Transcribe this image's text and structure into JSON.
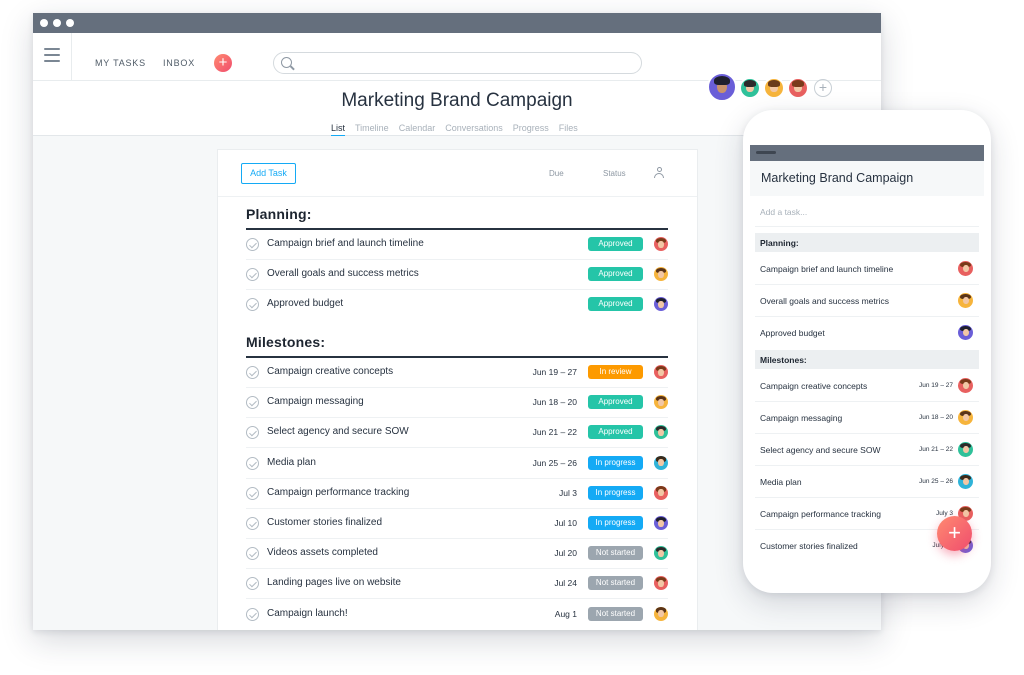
{
  "nav": {
    "my_tasks": "MY TASKS",
    "inbox": "INBOX",
    "plus_symbol": "+",
    "search_placeholder": ""
  },
  "project": {
    "title": "Marketing Brand Campaign",
    "tabs": [
      "List",
      "Timeline",
      "Calendar",
      "Conversations",
      "Progress",
      "Files"
    ],
    "active_tab": "List",
    "add_member_symbol": "+"
  },
  "list": {
    "add_task_label": "Add Task",
    "col_due": "Due",
    "col_status": "Status",
    "sections": [
      {
        "name": "Planning:",
        "tasks": [
          {
            "name": "Campaign brief and launch timeline",
            "due": "",
            "status": "Approved",
            "avatar": "red"
          },
          {
            "name": "Overall goals and success metrics",
            "due": "",
            "status": "Approved",
            "avatar": "yellow"
          },
          {
            "name": "Approved budget",
            "due": "",
            "status": "Approved",
            "avatar": "purple"
          }
        ]
      },
      {
        "name": "Milestones:",
        "tasks": [
          {
            "name": "Campaign creative concepts",
            "due": "Jun 19 – 27",
            "status": "In review",
            "avatar": "red"
          },
          {
            "name": "Campaign messaging",
            "due": "Jun 18 – 20",
            "status": "Approved",
            "avatar": "yellow"
          },
          {
            "name": "Select agency and secure SOW",
            "due": "Jun 21 – 22",
            "status": "Approved",
            "avatar": "green"
          },
          {
            "name": "Media plan",
            "due": "Jun 25 – 26",
            "status": "In progress",
            "avatar": "teal"
          },
          {
            "name": "Campaign performance tracking",
            "due": "Jul 3",
            "status": "In progress",
            "avatar": "red"
          },
          {
            "name": "Customer stories finalized",
            "due": "Jul 10",
            "status": "In progress",
            "avatar": "purple"
          },
          {
            "name": "Videos assets completed",
            "due": "Jul 20",
            "status": "Not started",
            "avatar": "green"
          },
          {
            "name": "Landing pages live on website",
            "due": "Jul 24",
            "status": "Not started",
            "avatar": "red"
          },
          {
            "name": "Campaign launch!",
            "due": "Aug 1",
            "status": "Not started",
            "avatar": "yellow"
          }
        ]
      }
    ]
  },
  "mobile": {
    "title": "Marketing Brand Campaign",
    "add_placeholder": "Add a task...",
    "planning_label": "Planning:",
    "milestones_label": "Milestones:",
    "planning_rows": [
      {
        "name": "Campaign brief and launch timeline",
        "due": "",
        "avatar": "red"
      },
      {
        "name": "Overall goals and success metrics",
        "due": "",
        "avatar": "yellow"
      },
      {
        "name": "Approved budget",
        "due": "",
        "avatar": "purple"
      }
    ],
    "milestone_rows": [
      {
        "name": "Campaign creative concepts",
        "due": "Jun 19 – 27",
        "avatar": "red"
      },
      {
        "name": "Campaign messaging",
        "due": "Jun 18 – 20",
        "avatar": "yellow"
      },
      {
        "name": "Select agency and secure SOW",
        "due": "Jun 21 – 22",
        "avatar": "green"
      },
      {
        "name": "Media plan",
        "due": "Jun 25 – 26",
        "avatar": "teal"
      },
      {
        "name": "Campaign performance tracking",
        "due": "July 3",
        "avatar": "red"
      },
      {
        "name": "Customer stories finalized",
        "due": "July 10",
        "avatar": "purple"
      }
    ],
    "fab_symbol": "+"
  },
  "colors": {
    "accent": "#14aaf5",
    "approved": "#25c5a8",
    "in_review": "#fd9a00",
    "in_progress": "#14aaf5",
    "not_started": "#9ca6af",
    "brand_gradient_start": "#ff8a70",
    "brand_gradient_end": "#f04d6e",
    "avatar_red": "#e8605f",
    "avatar_yellow": "#f6b43c",
    "avatar_purple": "#6a5ed8",
    "avatar_green": "#2fc19a",
    "avatar_teal": "#2fb3d8"
  },
  "icons": [
    "menu-icon",
    "plus-icon",
    "search-icon",
    "person-icon",
    "check-circle-icon",
    "add-member-icon"
  ]
}
